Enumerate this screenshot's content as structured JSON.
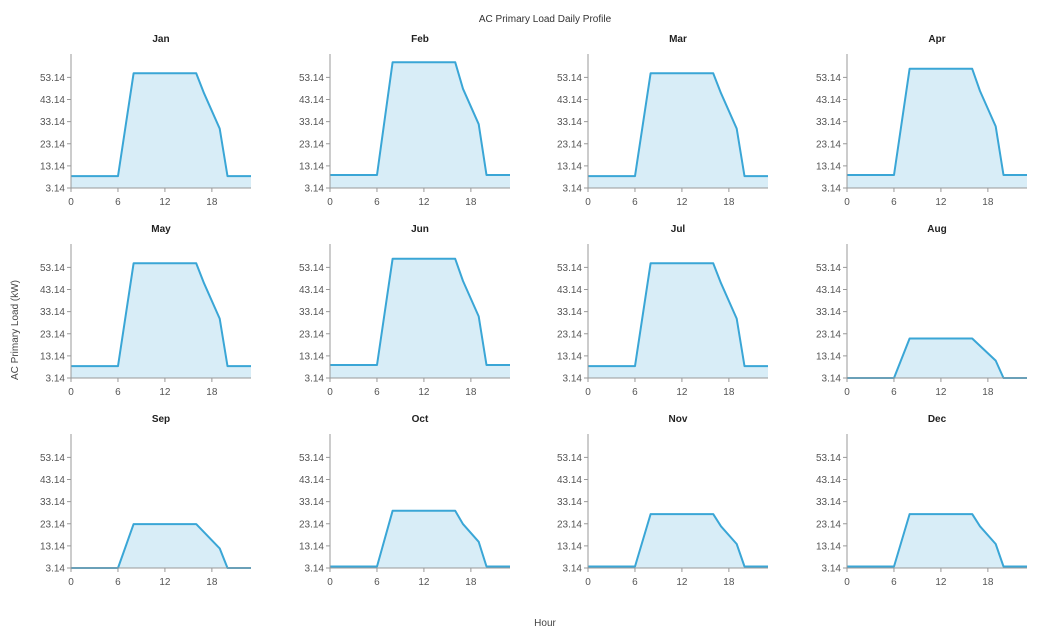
{
  "chart_data": {
    "type": "area",
    "title": "AC Primary Load Daily Profile",
    "xlabel": "Hour",
    "ylabel": "AC Primary Load (kW)",
    "y_ticks": [
      "3.14",
      "13.14",
      "23.14",
      "33.14",
      "43.14",
      "53.14"
    ],
    "x_ticks": [
      "0",
      "6",
      "12",
      "18"
    ],
    "ylim": [
      3.14,
      61
    ],
    "xlim": [
      0,
      23
    ],
    "grid": false,
    "colors": {
      "line": "#3aa6d6",
      "fill": "#d8edf7",
      "axis": "#999999"
    },
    "panels": [
      {
        "name": "Jan",
        "x": [
          0,
          6,
          8,
          16,
          17,
          19,
          20,
          23
        ],
        "y": [
          8.5,
          8.5,
          55,
          55,
          46,
          30,
          8.5,
          8.5
        ]
      },
      {
        "name": "Feb",
        "x": [
          0,
          6,
          8,
          16,
          17,
          19,
          20,
          23
        ],
        "y": [
          9,
          9,
          60,
          60,
          48,
          32,
          9,
          9
        ]
      },
      {
        "name": "Mar",
        "x": [
          0,
          6,
          8,
          16,
          17,
          19,
          20,
          23
        ],
        "y": [
          8.5,
          8.5,
          55,
          55,
          46,
          30,
          8.5,
          8.5
        ]
      },
      {
        "name": "Apr",
        "x": [
          0,
          6,
          8,
          16,
          17,
          19,
          20,
          23
        ],
        "y": [
          9,
          9,
          57,
          57,
          47,
          31,
          9,
          9
        ]
      },
      {
        "name": "May",
        "x": [
          0,
          6,
          8,
          16,
          17,
          19,
          20,
          23
        ],
        "y": [
          8.5,
          8.5,
          55,
          55,
          46,
          30,
          8.5,
          8.5
        ]
      },
      {
        "name": "Jun",
        "x": [
          0,
          6,
          8,
          16,
          17,
          19,
          20,
          23
        ],
        "y": [
          9,
          9,
          57,
          57,
          47,
          31,
          9,
          9
        ]
      },
      {
        "name": "Jul",
        "x": [
          0,
          6,
          8,
          16,
          17,
          19,
          20,
          23
        ],
        "y": [
          8.5,
          8.5,
          55,
          55,
          46,
          30,
          8.5,
          8.5
        ]
      },
      {
        "name": "Aug",
        "x": [
          0,
          6,
          8,
          16,
          19,
          20,
          23
        ],
        "y": [
          3.14,
          3.14,
          21,
          21,
          11,
          3.14,
          3.14
        ]
      },
      {
        "name": "Sep",
        "x": [
          0,
          6,
          8,
          16,
          19,
          20,
          23
        ],
        "y": [
          3.14,
          3.14,
          23,
          23,
          12,
          3.14,
          3.14
        ]
      },
      {
        "name": "Oct",
        "x": [
          0,
          6,
          8,
          16,
          17,
          19,
          20,
          23
        ],
        "y": [
          3.8,
          3.8,
          29,
          29,
          23,
          15,
          3.8,
          3.8
        ]
      },
      {
        "name": "Nov",
        "x": [
          0,
          6,
          8,
          16,
          17,
          19,
          20,
          23
        ],
        "y": [
          3.8,
          3.8,
          27.5,
          27.5,
          22,
          14,
          3.8,
          3.8
        ]
      },
      {
        "name": "Dec",
        "x": [
          0,
          6,
          8,
          16,
          17,
          19,
          20,
          23
        ],
        "y": [
          3.8,
          3.8,
          27.5,
          27.5,
          22,
          14,
          3.8,
          3.8
        ]
      }
    ]
  }
}
